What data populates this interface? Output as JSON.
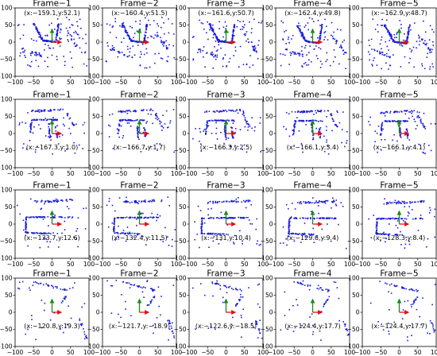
{
  "colors": {
    "points": "#1a1adc",
    "x_axis_arrow": "#e01010",
    "y_axis_arrow": "#1b8a1b",
    "frame_border": "#000000"
  },
  "chart_data": {
    "type": "scatter",
    "layout": "4 rows x 5 frames",
    "xlim": [
      -100,
      100
    ],
    "ylim": [
      -100,
      100
    ],
    "xticks": [
      "−100",
      "−50",
      "0",
      "50",
      "100"
    ],
    "yticks": [
      "100",
      "50",
      "0",
      "−50",
      "−100"
    ],
    "grid": false,
    "panels": [
      {
        "title": "Frame−1",
        "label": "(x:−159.1,y:52.1)"
      },
      {
        "title": "Frame−2",
        "label": "(x:−160.4,y:51.5)"
      },
      {
        "title": "Frame−3",
        "label": "(x:−161.6,y:50.7)"
      },
      {
        "title": "Frame−4",
        "label": "(x:−162.4,y:49.8)"
      },
      {
        "title": "Frame−5",
        "label": "(x:−162.9,y:48.7)"
      },
      {
        "title": "Frame−1",
        "label": "(x:−167.3,y:1.0)"
      },
      {
        "title": "Frame−2",
        "label": "(x:−166.7,y:1.7)"
      },
      {
        "title": "Frame−3",
        "label": "(x:−166.3,y:2.5)"
      },
      {
        "title": "Frame−4",
        "label": "(x:−166.1,y:3.4)"
      },
      {
        "title": "Frame−5",
        "label": "(x:−166.1,y:4.1)"
      },
      {
        "title": "Frame−1",
        "label": "(x:−133.7,y:12.6)"
      },
      {
        "title": "Frame−2",
        "label": "(x:−132.4,y:11.5)"
      },
      {
        "title": "Frame−3",
        "label": "(x:−131,y:10.4)"
      },
      {
        "title": "Frame−4",
        "label": "(x:−129.6,y:9.4)"
      },
      {
        "title": "Frame−5",
        "label": "(x:−128.3,y:8.4)"
      },
      {
        "title": "Frame−1",
        "label": "(x:−120.8,y:19.3)"
      },
      {
        "title": "Frame−2",
        "label": "(x:−121.7,y:−18.9)"
      },
      {
        "title": "Frame−3",
        "label": "(x:−122.6,y:−18.5)"
      },
      {
        "title": "Frame−4",
        "label": "(x:−124.4,y:17.7)"
      },
      {
        "title": "Frame−5",
        "label": "(x:−124.4,y:17.7)"
      }
    ]
  }
}
